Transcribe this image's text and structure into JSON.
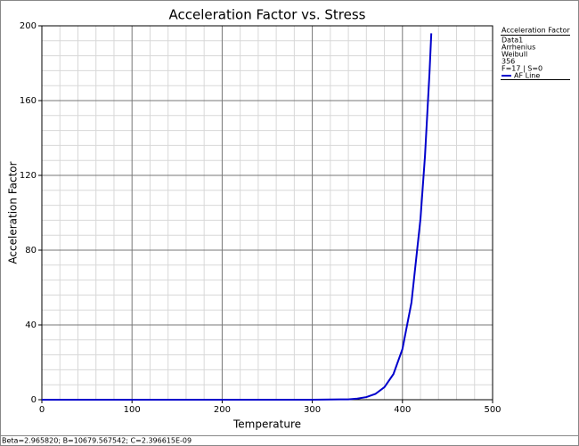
{
  "chart_data": {
    "type": "line",
    "title": "Acceleration Factor vs. Stress",
    "x_label": "Temperature",
    "y_label": "Acceleration Factor",
    "x": [
      0,
      100,
      200,
      300,
      340,
      350,
      360,
      370,
      380,
      390,
      400,
      410,
      420,
      425,
      430,
      432
    ],
    "series": [
      {
        "name": "AF Line",
        "color": "#0000cc",
        "values": [
          0,
          0,
          0,
          0,
          0.2,
          0.6,
          1.4,
          3.1,
          6.7,
          13.7,
          27.1,
          52.0,
          96.7,
          130.4,
          174.7,
          196.0
        ]
      }
    ],
    "xlim": [
      0,
      500
    ],
    "xticks": [
      0,
      100,
      200,
      300,
      400,
      500
    ],
    "ylim": [
      0,
      200
    ],
    "yticks": [
      0,
      40,
      80,
      120,
      160,
      200
    ],
    "grid": true,
    "legend_title": "Acceleration Factor",
    "legend_info": [
      "Data1",
      "Arrhenius",
      "Weibull",
      "356",
      "F=17 | S=0"
    ],
    "footer": "Beta=2.965820; B=10679.567542; C=2.396615E-09"
  }
}
